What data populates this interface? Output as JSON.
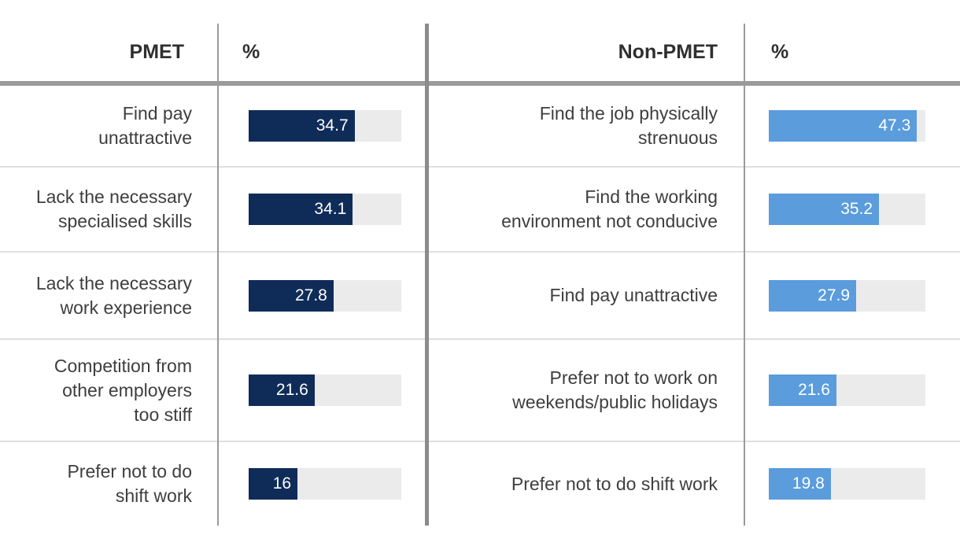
{
  "chart_data": {
    "type": "bar",
    "orientation": "horizontal",
    "scale_max": 50,
    "colors": {
      "pmet_bar": "#0f2c59",
      "nonpmet_bar": "#5a9cdc",
      "track": "#ebebeb"
    },
    "groups": [
      {
        "name": "PMET",
        "unit": "%",
        "rows": [
          {
            "label": "Find pay\nunattractive",
            "value": 34.7
          },
          {
            "label": "Lack the necessary\nspecialised skills",
            "value": 34.1
          },
          {
            "label": "Lack the necessary\nwork experience",
            "value": 27.8
          },
          {
            "label": "Competition from\nother employers\ntoo stiff",
            "value": 21.6
          },
          {
            "label": "Prefer not to do\nshift work",
            "value": 16
          }
        ]
      },
      {
        "name": "Non-PMET",
        "unit": "%",
        "rows": [
          {
            "label": "Find the job physically\nstrenuous",
            "value": 47.3
          },
          {
            "label": "Find the working\nenvironment not conducive",
            "value": 35.2
          },
          {
            "label": "Find pay unattractive",
            "value": 27.9
          },
          {
            "label": "Prefer not to work on\nweekends/public holidays",
            "value": 21.6
          },
          {
            "label": "Prefer not to do shift work",
            "value": 19.8
          }
        ]
      }
    ]
  }
}
